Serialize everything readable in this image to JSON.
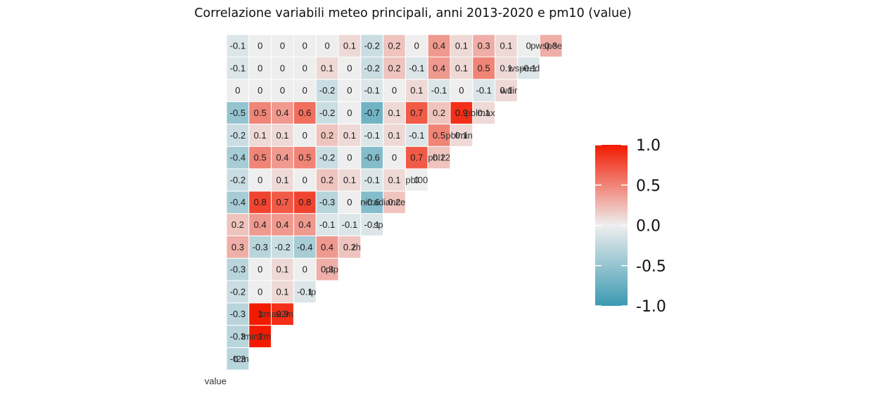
{
  "chart_data": {
    "type": "heatmap",
    "title": "Correlazione variabili meteo principali, anni 2013-2020 e pm10 (value)",
    "variables": [
      "value",
      "t2m",
      "tmin2m",
      "tmax2m",
      "tp",
      "ptp",
      "rh",
      "sp",
      "nirradiance",
      "pbl00",
      "pbl12",
      "pblmin",
      "pblmax",
      "wdir",
      "wspeed",
      "pwspeed"
    ],
    "row_labels_shown": [
      "value",
      "t2m",
      "tmin2m",
      "tmax2m",
      "tp",
      "ptp",
      "rh",
      "sp",
      "nirradiance",
      "pbl00",
      "pbl12",
      "pblmin",
      "pblmax",
      "wdir",
      "wspeed",
      "pwspee"
    ],
    "matrix_lower": [
      [],
      [
        -0.3
      ],
      [
        -0.3,
        1
      ],
      [
        -0.3,
        1,
        0.9
      ],
      [
        -0.2,
        0,
        0.1,
        -0.1
      ],
      [
        -0.3,
        0,
        0.1,
        0,
        0.3
      ],
      [
        0.3,
        -0.3,
        -0.2,
        -0.4,
        0.4,
        0.2
      ],
      [
        0.2,
        0.4,
        0.4,
        0.4,
        -0.1,
        -0.1,
        -0.1
      ],
      [
        -0.4,
        0.8,
        0.7,
        0.8,
        -0.3,
        0,
        -0.6,
        0.2
      ],
      [
        -0.2,
        0,
        0.1,
        0,
        0.2,
        0.1,
        -0.1,
        0.1,
        0
      ],
      [
        -0.4,
        0.5,
        0.4,
        0.5,
        -0.2,
        0,
        -0.6,
        0,
        0.7,
        0.2
      ],
      [
        -0.2,
        0.1,
        0.1,
        0,
        0.2,
        0.1,
        -0.1,
        0.1,
        -0.1,
        0.5,
        0.1
      ],
      [
        -0.5,
        0.5,
        0.4,
        0.6,
        -0.2,
        0,
        -0.7,
        0.1,
        0.7,
        0.2,
        0.9,
        0.1
      ],
      [
        0,
        0,
        0,
        0,
        -0.2,
        0,
        -0.1,
        0,
        0.1,
        -0.1,
        0,
        -0.1,
        0.1
      ],
      [
        -0.1,
        0,
        0,
        0,
        0.1,
        0,
        -0.2,
        0.2,
        -0.1,
        0.4,
        0.1,
        0.5,
        0.1,
        -0.1
      ],
      [
        -0.1,
        0,
        0,
        0,
        0,
        0.1,
        -0.2,
        0.2,
        0,
        0.4,
        0.1,
        0.3,
        0.1,
        0,
        0.3
      ]
    ],
    "color_scale": {
      "low": "#3b9ab2",
      "mid": "#eeeeee",
      "high": "#f21a00",
      "limits": [
        -1,
        1
      ]
    },
    "legend": {
      "position": "right",
      "ticks": [
        "1.0",
        "0.5",
        "0.0",
        "-0.5",
        "-1.0"
      ]
    },
    "grid": false
  }
}
